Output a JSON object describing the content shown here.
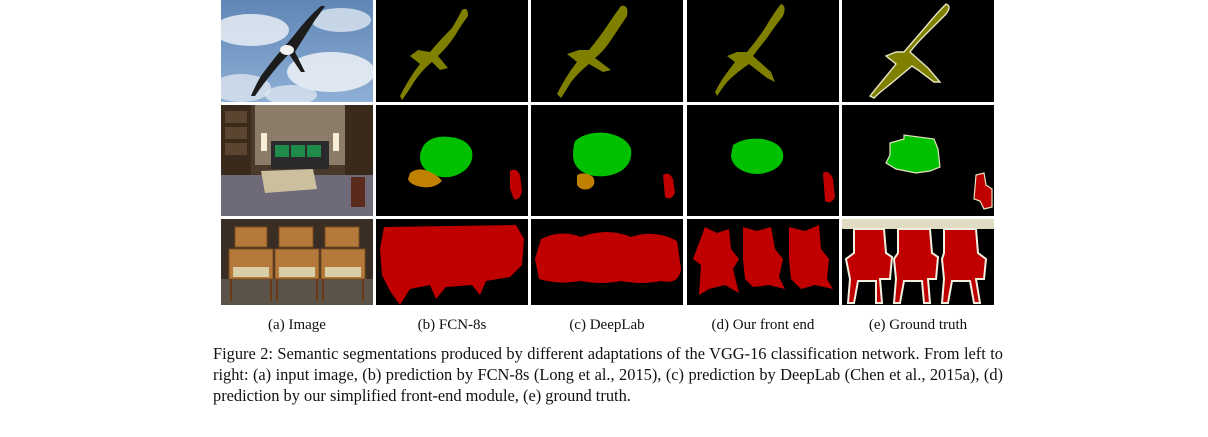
{
  "figure": {
    "columns": [
      {
        "id": "image",
        "label": "(a) Image"
      },
      {
        "id": "fcn8s",
        "label": "(b) FCN-8s"
      },
      {
        "id": "deeplab",
        "label": "(c) DeepLab"
      },
      {
        "id": "frontend",
        "label": "(d) Our front end"
      },
      {
        "id": "groundtruth",
        "label": "(e) Ground truth"
      }
    ],
    "rows": [
      "bird",
      "living-room",
      "chairs"
    ],
    "caption": "Figure 2: Semantic segmentations produced by different adaptations of the VGG-16 classification network. From left to right: (a) input image, (b) prediction by FCN-8s (Long et al., 2015), (c) prediction by DeepLab (Chen et al., 2015a), (d) prediction by our simplified front-end module, (e) ground truth."
  },
  "colors": {
    "bird": "#808000",
    "sofa": "#00c000",
    "table": "#c08000",
    "chair": "#c00000",
    "background": "#000000",
    "void": "#e0dcc4"
  }
}
